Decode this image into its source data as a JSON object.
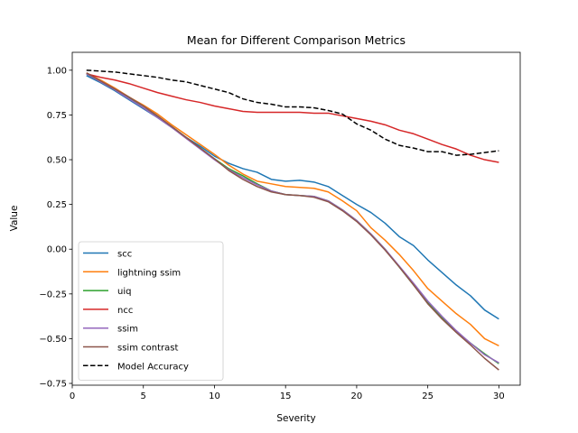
{
  "chart_data": {
    "type": "line",
    "title": "Mean for Different Comparison Metrics",
    "xlabel": "Severity",
    "ylabel": "Value",
    "xlim": [
      0,
      31.5
    ],
    "ylim": [
      -0.76,
      1.1
    ],
    "xticks": [
      0,
      5,
      10,
      15,
      20,
      25,
      30
    ],
    "yticks": [
      -0.75,
      -0.5,
      -0.25,
      0.0,
      0.25,
      0.5,
      0.75,
      1.0
    ],
    "ytick_labels": [
      "−0.75",
      "−0.50",
      "−0.25",
      "0.00",
      "0.25",
      "0.50",
      "0.75",
      "1.00"
    ],
    "grid": false,
    "legend_position": "lower-left",
    "x": [
      1,
      2,
      3,
      4,
      5,
      6,
      7,
      8,
      9,
      10,
      11,
      12,
      13,
      14,
      15,
      16,
      17,
      18,
      19,
      20,
      21,
      22,
      23,
      24,
      25,
      26,
      27,
      28,
      29,
      30
    ],
    "series": [
      {
        "name": "scc",
        "color": "#1f77b4",
        "dash": "solid",
        "values": [
          0.97,
          0.93,
          0.885,
          0.835,
          0.785,
          0.735,
          0.68,
          0.625,
          0.575,
          0.52,
          0.48,
          0.45,
          0.43,
          0.39,
          0.38,
          0.385,
          0.375,
          0.35,
          0.3,
          0.25,
          0.205,
          0.145,
          0.07,
          0.02,
          -0.06,
          -0.13,
          -0.2,
          -0.26,
          -0.34,
          -0.39
        ]
      },
      {
        "name": "lightning ssim",
        "color": "#ff7f0e",
        "dash": "solid",
        "values": [
          0.985,
          0.945,
          0.9,
          0.85,
          0.805,
          0.755,
          0.695,
          0.64,
          0.585,
          0.53,
          0.47,
          0.42,
          0.38,
          0.365,
          0.35,
          0.345,
          0.34,
          0.32,
          0.27,
          0.215,
          0.12,
          0.05,
          -0.03,
          -0.12,
          -0.22,
          -0.29,
          -0.36,
          -0.42,
          -0.5,
          -0.54
        ]
      },
      {
        "name": "uiq",
        "color": "#2ca02c",
        "dash": "solid",
        "values": [
          0.98,
          0.935,
          0.89,
          0.845,
          0.79,
          0.74,
          0.685,
          0.625,
          0.565,
          0.505,
          0.45,
          0.41,
          0.365,
          0.325,
          0.305,
          0.3,
          0.295,
          0.27,
          0.22,
          0.16,
          0.085,
          0.0,
          -0.1,
          -0.2,
          -0.3,
          -0.385,
          -0.46,
          -0.525,
          -0.585,
          -0.64
        ]
      },
      {
        "name": "ncc",
        "color": "#d62728",
        "dash": "solid",
        "values": [
          0.98,
          0.96,
          0.945,
          0.925,
          0.9,
          0.875,
          0.855,
          0.835,
          0.82,
          0.8,
          0.785,
          0.77,
          0.765,
          0.765,
          0.765,
          0.765,
          0.76,
          0.76,
          0.745,
          0.73,
          0.715,
          0.695,
          0.665,
          0.645,
          0.615,
          0.585,
          0.56,
          0.525,
          0.5,
          0.485
        ]
      },
      {
        "name": "ssim",
        "color": "#9467bd",
        "dash": "solid",
        "values": [
          0.98,
          0.935,
          0.89,
          0.84,
          0.79,
          0.735,
          0.68,
          0.62,
          0.56,
          0.5,
          0.445,
          0.4,
          0.36,
          0.325,
          0.305,
          0.3,
          0.295,
          0.27,
          0.22,
          0.16,
          0.085,
          0.0,
          -0.095,
          -0.19,
          -0.29,
          -0.375,
          -0.455,
          -0.525,
          -0.59,
          -0.635
        ]
      },
      {
        "name": "ssim contrast",
        "color": "#8c564b",
        "dash": "solid",
        "values": [
          0.985,
          0.94,
          0.895,
          0.85,
          0.8,
          0.745,
          0.685,
          0.625,
          0.565,
          0.505,
          0.44,
          0.39,
          0.35,
          0.32,
          0.305,
          0.3,
          0.29,
          0.265,
          0.215,
          0.155,
          0.08,
          -0.005,
          -0.1,
          -0.2,
          -0.305,
          -0.39,
          -0.465,
          -0.535,
          -0.61,
          -0.675
        ]
      },
      {
        "name": "Model Accuracy",
        "color": "#000000",
        "dash": "dashed",
        "values": [
          1.0,
          0.995,
          0.99,
          0.98,
          0.97,
          0.96,
          0.945,
          0.935,
          0.915,
          0.895,
          0.875,
          0.84,
          0.82,
          0.81,
          0.795,
          0.795,
          0.79,
          0.775,
          0.755,
          0.7,
          0.665,
          0.615,
          0.58,
          0.565,
          0.545,
          0.545,
          0.525,
          0.53,
          0.54,
          0.55
        ]
      }
    ]
  }
}
